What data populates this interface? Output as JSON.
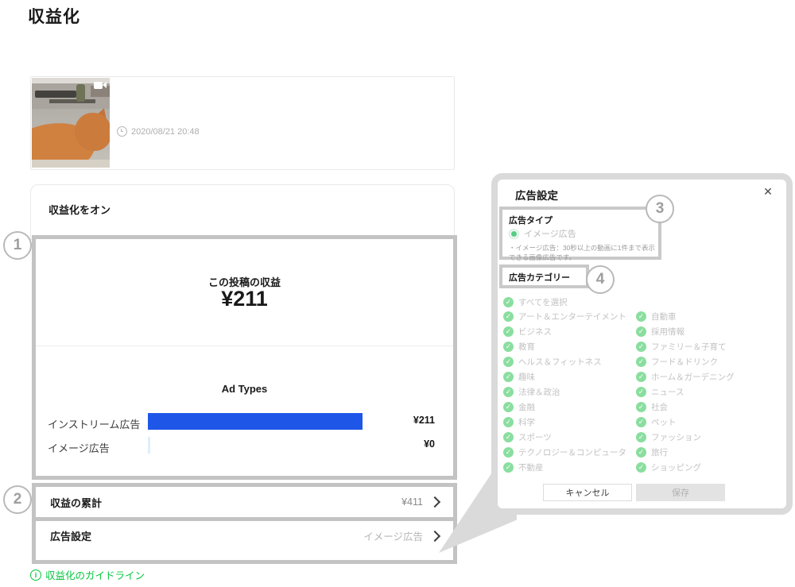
{
  "page": {
    "title": "収益化"
  },
  "post": {
    "timestamp": "2020/08/21 20:48"
  },
  "monetize_card": {
    "title": "収益化をオン"
  },
  "revenue_panel": {
    "title": "この投稿の収益",
    "amount": "¥211"
  },
  "chart_data": {
    "type": "bar",
    "title": "Ad Types",
    "rows": [
      {
        "label": "インストリーム広告",
        "value_label": "¥211",
        "value_yen": 211,
        "bar_style": "width:270px"
      },
      {
        "label": "イメージ広告",
        "value_label": "¥0",
        "value_yen": 0,
        "bar_style": "width:3px"
      }
    ],
    "bar_color": "#1e56e8"
  },
  "summary": {
    "total_row": {
      "label": "収益の累計",
      "value": "¥411"
    },
    "ad_settings_row": {
      "label": "広告設定",
      "value": "イメージ広告"
    }
  },
  "guideline": {
    "label": "収益化のガイドライン"
  },
  "annotations": {
    "n1": "1",
    "n2": "2",
    "n3": "3",
    "n4": "4"
  },
  "dialog": {
    "title": "広告設定",
    "close_icon": "✕",
    "ad_type": {
      "heading": "広告タイプ",
      "option": "イメージ広告",
      "note": "・イメージ広告：30秒以上の動画に1件まで表示できる画像広告です。"
    },
    "category": {
      "heading": "広告カテゴリー",
      "select_all": "すべてを選択",
      "left": [
        "アート＆エンターテイメント",
        "ビジネス",
        "教育",
        "ヘルス＆フィットネス",
        "趣味",
        "法律＆政治",
        "金融",
        "科学",
        "スポーツ",
        "テクノロジー＆コンピュータ",
        "不動産"
      ],
      "right": [
        "自動車",
        "採用情報",
        "ファミリー＆子育て",
        "フード＆ドリンク",
        "ホーム＆ガーデニング",
        "ニュース",
        "社会",
        "ペット",
        "ファッション",
        "旅行",
        "ショッピング"
      ]
    },
    "cancel_label": "キャンセル",
    "save_label": "保存"
  },
  "colors": {
    "accent_blue": "#1e56e8",
    "line_green": "#00c73c",
    "check_green": "#8ade9f",
    "annotation_gray": "#c3c3c3"
  }
}
